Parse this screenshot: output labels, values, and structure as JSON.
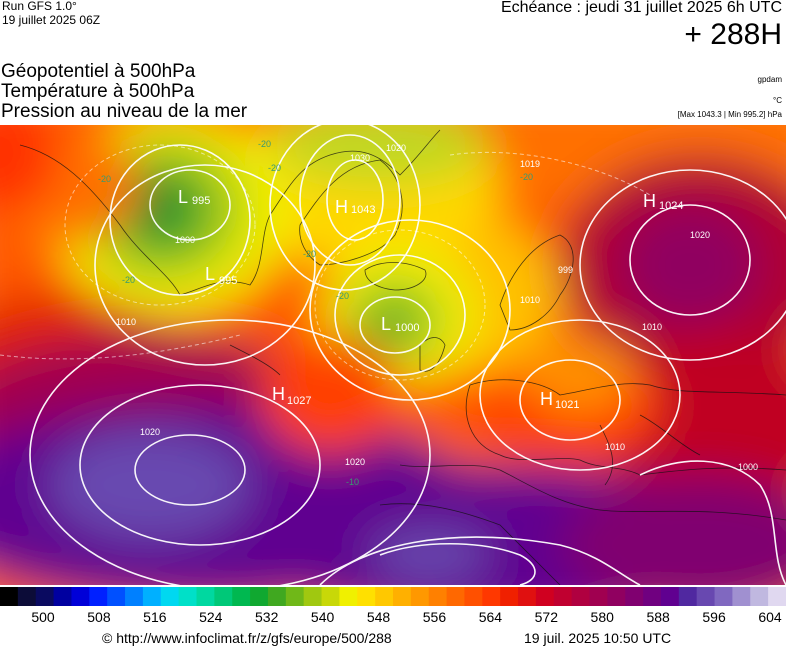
{
  "header": {
    "run_title": "Run GFS 1.0°",
    "run_date": "19 juillet 2025 06Z",
    "valid_time": "Echéance : jeudi 31 juillet 2025 6h UTC",
    "lead_time": "+ 288H"
  },
  "layers": {
    "geopotential": "Géopotentiel à 500hPa",
    "temperature": "Température à 500hPa",
    "pressure": "Pression au niveau de la mer"
  },
  "units": {
    "geopotential": "gpdam",
    "temperature": "°C",
    "pressure_range": "[Max 1043.3 | Min 995.2] hPa"
  },
  "map": {
    "pressure_centers": [
      {
        "type": "L",
        "value": "995"
      },
      {
        "type": "L",
        "value": "995"
      },
      {
        "type": "H",
        "value": "1043"
      },
      {
        "type": "L",
        "value": "1000"
      },
      {
        "type": "H",
        "value": "1027"
      },
      {
        "type": "H",
        "value": "1021"
      },
      {
        "type": "H",
        "value": "1024"
      }
    ],
    "isobar_labels": [
      "1000",
      "1030",
      "1020",
      "1019",
      "999",
      "1010",
      "1020",
      "1020",
      "1010",
      "1000",
      "1020",
      "1010",
      "1010"
    ],
    "isotherm_labels": [
      "-20",
      "-20",
      "-20",
      "-20",
      "-20",
      "-20",
      "-20",
      "-10"
    ]
  },
  "colorbar": {
    "colors": [
      "#000000",
      "#0c0c38",
      "#0a0a60",
      "#0000a0",
      "#0000d8",
      "#0020ff",
      "#0050ff",
      "#0080ff",
      "#00b0ff",
      "#00d8f0",
      "#00e0c8",
      "#00d8a0",
      "#00c878",
      "#00b850",
      "#10a830",
      "#40a820",
      "#70b818",
      "#a0c810",
      "#c8d808",
      "#f0f000",
      "#ffe000",
      "#ffc800",
      "#ffb000",
      "#ff9800",
      "#ff8000",
      "#ff6800",
      "#ff5000",
      "#ff3800",
      "#f02000",
      "#e01010",
      "#d00020",
      "#c00030",
      "#b00040",
      "#a00050",
      "#900060",
      "#800070",
      "#700080",
      "#600090",
      "#5028a0",
      "#6848b0",
      "#8068c0",
      "#a090d0",
      "#c0b8e0",
      "#e0d8f0"
    ],
    "tick_labels": [
      "500",
      "508",
      "516",
      "524",
      "532",
      "540",
      "548",
      "556",
      "564",
      "572",
      "580",
      "588",
      "596",
      "604"
    ]
  },
  "footer": {
    "url": "© http://www.infoclimat.fr/z/gfs/europe/500/288",
    "generated": "19 juil. 2025 10:50 UTC"
  }
}
